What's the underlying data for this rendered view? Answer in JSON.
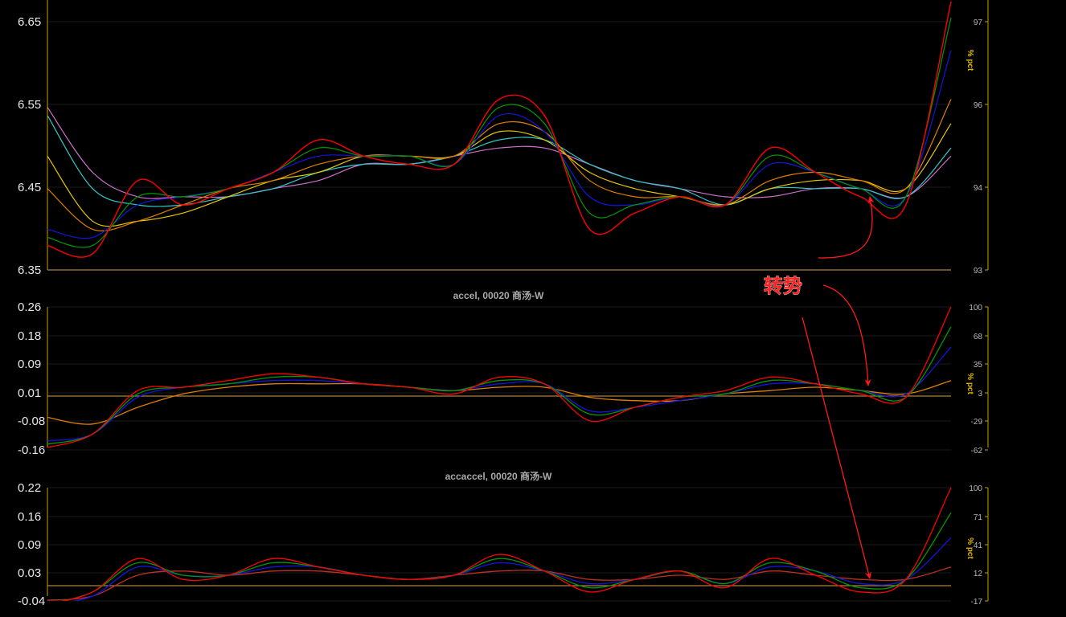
{
  "colors": {
    "background": "#000000",
    "axis": "#c8a000",
    "grid": "#1a1a1a",
    "zero_line": "#b08040",
    "annotation": "#ff1a1a",
    "series": [
      "#ff0000",
      "#009900",
      "#1414e0",
      "#e08000",
      "#e8c800",
      "#30c8c8",
      "#d070d0"
    ]
  },
  "annotation": {
    "text": "转势"
  },
  "chart_data": [
    {
      "type": "line",
      "title": "",
      "ylabel_right": "% pct",
      "y_ticks_left": [
        "6.65",
        "6.55",
        "6.45",
        "6.35"
      ],
      "y_ticks_right": [
        "97",
        "96",
        "94",
        "93"
      ],
      "ylim": [
        6.35,
        6.68
      ],
      "x": [
        0,
        5,
        10,
        15,
        20,
        25,
        30,
        35,
        40,
        45,
        50,
        55,
        60,
        65,
        70,
        75,
        80,
        85,
        90,
        95,
        100
      ],
      "series": [
        {
          "values": [
            6.38,
            6.37,
            6.46,
            6.43,
            6.45,
            6.47,
            6.51,
            6.49,
            6.48,
            6.48,
            6.56,
            6.54,
            6.4,
            6.42,
            6.44,
            6.43,
            6.5,
            6.47,
            6.44,
            6.43,
            6.68
          ]
        },
        {
          "values": [
            6.39,
            6.38,
            6.44,
            6.44,
            6.45,
            6.47,
            6.5,
            6.49,
            6.49,
            6.48,
            6.55,
            6.53,
            6.42,
            6.43,
            6.44,
            6.43,
            6.49,
            6.47,
            6.45,
            6.44,
            6.66
          ]
        },
        {
          "values": [
            6.4,
            6.39,
            6.43,
            6.44,
            6.45,
            6.47,
            6.49,
            6.49,
            6.49,
            6.48,
            6.54,
            6.52,
            6.44,
            6.43,
            6.44,
            6.43,
            6.48,
            6.47,
            6.45,
            6.44,
            6.62
          ]
        },
        {
          "values": [
            6.45,
            6.4,
            6.41,
            6.43,
            6.45,
            6.46,
            6.48,
            6.49,
            6.49,
            6.49,
            6.53,
            6.52,
            6.46,
            6.44,
            6.44,
            6.43,
            6.46,
            6.47,
            6.46,
            6.45,
            6.56
          ]
        },
        {
          "values": [
            6.49,
            6.41,
            6.41,
            6.42,
            6.44,
            6.46,
            6.47,
            6.49,
            6.49,
            6.49,
            6.52,
            6.51,
            6.47,
            6.45,
            6.44,
            6.43,
            6.45,
            6.46,
            6.46,
            6.45,
            6.53
          ]
        },
        {
          "values": [
            6.54,
            6.45,
            6.43,
            6.43,
            6.44,
            6.45,
            6.47,
            6.48,
            6.48,
            6.49,
            6.51,
            6.51,
            6.48,
            6.46,
            6.45,
            6.43,
            6.45,
            6.45,
            6.45,
            6.44,
            6.5
          ]
        },
        {
          "values": [
            6.55,
            6.47,
            6.44,
            6.44,
            6.44,
            6.45,
            6.46,
            6.48,
            6.48,
            6.49,
            6.5,
            6.5,
            6.48,
            6.46,
            6.45,
            6.44,
            6.44,
            6.45,
            6.45,
            6.44,
            6.49
          ]
        }
      ]
    },
    {
      "type": "line",
      "title": "accel, 00020 商汤-W",
      "ylabel_right": "% pct",
      "y_ticks_left": [
        "0.26",
        "0.18",
        "0.09",
        "0.01",
        "-0.08",
        "-0.16"
      ],
      "y_ticks_right": [
        "100",
        "68",
        "35",
        "3",
        "-29",
        "-62"
      ],
      "ylim": [
        -0.16,
        0.26
      ],
      "zero_line": 0.01,
      "x": [
        0,
        5,
        10,
        15,
        20,
        25,
        30,
        35,
        40,
        45,
        50,
        55,
        60,
        65,
        70,
        75,
        80,
        85,
        90,
        95,
        100
      ],
      "series": [
        {
          "values": [
            -0.16,
            -0.12,
            0.01,
            0.02,
            0.04,
            0.06,
            0.05,
            0.03,
            0.02,
            0.0,
            0.05,
            0.03,
            -0.08,
            -0.04,
            -0.01,
            0.01,
            0.05,
            0.03,
            0.0,
            -0.01,
            0.26
          ]
        },
        {
          "values": [
            -0.15,
            -0.12,
            0.0,
            0.02,
            0.03,
            0.05,
            0.05,
            0.03,
            0.02,
            0.01,
            0.04,
            0.03,
            -0.06,
            -0.04,
            -0.01,
            0.0,
            0.04,
            0.03,
            0.01,
            -0.01,
            0.2
          ]
        },
        {
          "values": [
            -0.14,
            -0.12,
            -0.01,
            0.02,
            0.03,
            0.04,
            0.04,
            0.03,
            0.02,
            0.01,
            0.03,
            0.03,
            -0.05,
            -0.04,
            -0.02,
            0.0,
            0.03,
            0.03,
            0.01,
            0.0,
            0.14
          ]
        },
        {
          "values": [
            -0.07,
            -0.09,
            -0.04,
            0.0,
            0.02,
            0.03,
            0.03,
            0.03,
            0.02,
            0.01,
            0.02,
            0.02,
            -0.01,
            -0.02,
            -0.02,
            0.0,
            0.01,
            0.02,
            0.01,
            0.0,
            0.04
          ]
        }
      ]
    },
    {
      "type": "line",
      "title": "accaccel, 00020 商汤-W",
      "ylabel_right": "% pct",
      "y_ticks_left": [
        "0.22",
        "0.16",
        "0.09",
        "0.03",
        "-0.04"
      ],
      "y_ticks_right": [
        "100",
        "71",
        "41",
        "12",
        "-17"
      ],
      "ylim": [
        -0.04,
        0.22
      ],
      "zero_line": 0.01,
      "x": [
        0,
        5,
        10,
        15,
        20,
        25,
        30,
        35,
        40,
        45,
        50,
        55,
        60,
        65,
        70,
        75,
        80,
        85,
        90,
        95,
        100
      ],
      "series": [
        {
          "values": [
            -0.06,
            -0.03,
            0.05,
            0.0,
            0.01,
            0.05,
            0.03,
            0.01,
            0.0,
            0.01,
            0.06,
            0.02,
            -0.03,
            0.0,
            0.02,
            -0.02,
            0.05,
            0.01,
            -0.03,
            0.0,
            0.22
          ]
        },
        {
          "values": [
            -0.06,
            -0.03,
            0.04,
            0.01,
            0.01,
            0.04,
            0.03,
            0.01,
            0.0,
            0.01,
            0.05,
            0.02,
            -0.02,
            0.0,
            0.02,
            -0.01,
            0.04,
            0.02,
            -0.02,
            0.0,
            0.16
          ]
        },
        {
          "values": [
            -0.06,
            -0.04,
            0.03,
            0.01,
            0.01,
            0.03,
            0.03,
            0.01,
            0.0,
            0.01,
            0.04,
            0.02,
            -0.01,
            0.0,
            0.02,
            -0.01,
            0.03,
            0.02,
            -0.01,
            0.0,
            0.1
          ]
        },
        {
          "values": [
            -0.05,
            -0.04,
            0.01,
            0.02,
            0.01,
            0.02,
            0.02,
            0.01,
            0.0,
            0.01,
            0.02,
            0.02,
            0.0,
            0.0,
            0.01,
            0.0,
            0.02,
            0.01,
            0.0,
            0.0,
            0.03
          ]
        }
      ]
    }
  ]
}
